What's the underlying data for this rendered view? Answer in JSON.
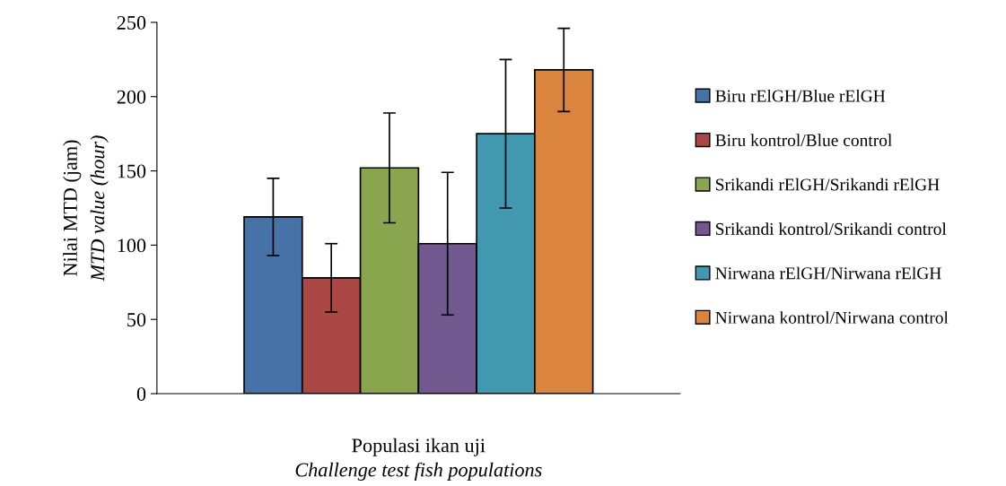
{
  "chart_data": {
    "type": "bar",
    "categories": [
      null
    ],
    "xlabel": "Populasi ikan uji\nChallenge test fish populations",
    "ylabel": "Nilai MTD (jam)\nMTD value (hour)",
    "ylim": [
      0,
      250
    ],
    "yticks": [
      0,
      50,
      100,
      150,
      200,
      250
    ],
    "series": [
      {
        "name": "Biru rElGH/Blue rElGH",
        "color": "#4672a8",
        "values": [
          119
        ],
        "errors": [
          26
        ]
      },
      {
        "name": "Biru kontrol/Blue control",
        "color": "#aa4643",
        "values": [
          78
        ],
        "errors": [
          23
        ]
      },
      {
        "name": "Srikandi rElGH/Srikandi rElGH",
        "color": "#89a54e",
        "values": [
          152
        ],
        "errors": [
          37
        ]
      },
      {
        "name": "Srikandi kontrol/Srikandi control",
        "color": "#71588f",
        "values": [
          101
        ],
        "errors": [
          48
        ]
      },
      {
        "name": "Nirwana rElGH/Nirwana rElGH",
        "color": "#4198af",
        "values": [
          175
        ],
        "errors": [
          50
        ]
      },
      {
        "name": "Nirwana kontrol/Nirwana control",
        "color": "#db843d",
        "values": [
          218
        ],
        "errors": [
          28
        ]
      }
    ],
    "grid": false,
    "legend": "right"
  }
}
